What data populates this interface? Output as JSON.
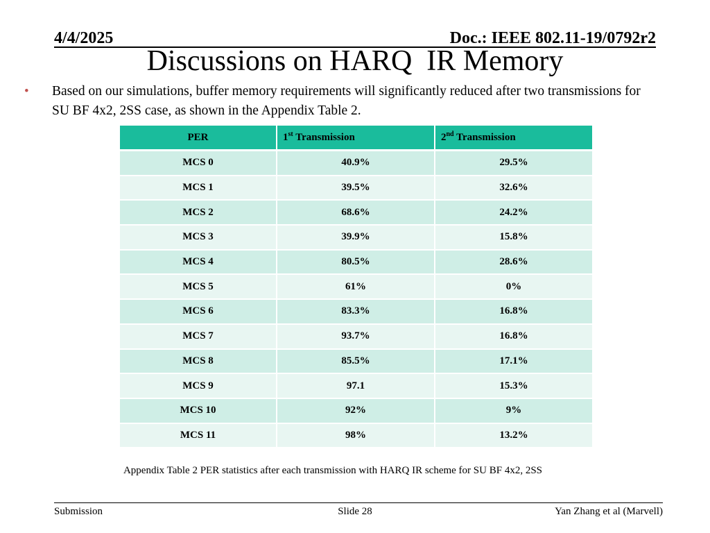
{
  "header": {
    "date": "4/4/2025",
    "doc_id": "Doc.: IEEE 802.11-19/0792r2"
  },
  "slide_title": "Discussions on HARQ  IR Memory",
  "bullet": {
    "marker": "•",
    "text": "Based on our simulations, buffer memory requirements will significantly reduced after two transmissions for SU BF 4x2, 2SS case, as shown in the Appendix Table 2."
  },
  "table": {
    "headers": [
      {
        "label": "PER"
      },
      {
        "label_prefix": "1",
        "label_sup": "st",
        "label_suffix": " Transmission"
      },
      {
        "label_prefix": "2",
        "label_sup": "nd",
        "label_suffix": " Transmission"
      }
    ],
    "rows": [
      {
        "mcs": "MCS 0",
        "tx1": "40.9%",
        "tx2": "29.5%"
      },
      {
        "mcs": "MCS 1",
        "tx1": "39.5%",
        "tx2": "32.6%"
      },
      {
        "mcs": "MCS 2",
        "tx1": "68.6%",
        "tx2": "24.2%"
      },
      {
        "mcs": "MCS 3",
        "tx1": "39.9%",
        "tx2": "15.8%"
      },
      {
        "mcs": "MCS 4",
        "tx1": "80.5%",
        "tx2": "28.6%"
      },
      {
        "mcs": "MCS 5",
        "tx1": "61%",
        "tx2": "0%"
      },
      {
        "mcs": "MCS 6",
        "tx1": "83.3%",
        "tx2": "16.8%"
      },
      {
        "mcs": "MCS 7",
        "tx1": "93.7%",
        "tx2": "16.8%"
      },
      {
        "mcs": "MCS 8",
        "tx1": "85.5%",
        "tx2": "17.1%"
      },
      {
        "mcs": "MCS 9",
        "tx1": "97.1",
        "tx2": "15.3%"
      },
      {
        "mcs": "MCS 10",
        "tx1": "92%",
        "tx2": "9%"
      },
      {
        "mcs": "MCS 11",
        "tx1": "98%",
        "tx2": "13.2%"
      }
    ],
    "caption": "Appendix Table 2 PER statistics after each transmission with HARQ IR scheme for SU BF 4x2, 2SS"
  },
  "footer": {
    "left": "Submission",
    "center": "Slide 28",
    "right": "Yan Zhang et al (Marvell)"
  },
  "colors": {
    "header_fill": "#1abc9c",
    "row_odd_fill": "#cfeee6",
    "row_even_fill": "#e8f6f2",
    "bullet_color": "#c0504d"
  }
}
